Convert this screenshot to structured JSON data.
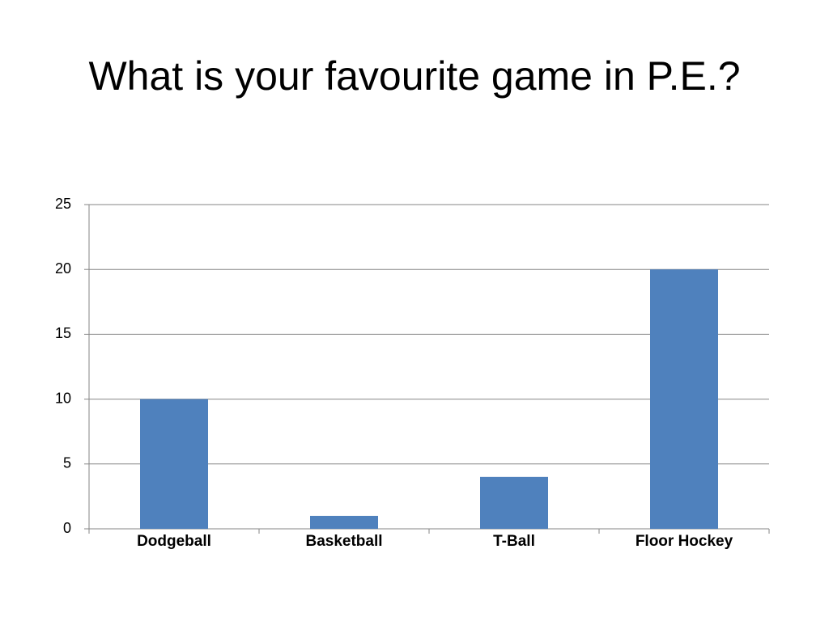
{
  "chart_data": {
    "type": "bar",
    "title": "What is your favourite game in P.E.?",
    "categories": [
      "Dodgeball",
      "Basketball",
      "T-Ball",
      "Floor Hockey"
    ],
    "values": [
      10,
      1,
      4,
      20
    ],
    "color": "#4f81bd",
    "ylim": [
      0,
      25
    ],
    "yticks": [
      0,
      5,
      10,
      15,
      20,
      25
    ],
    "grid": true
  }
}
